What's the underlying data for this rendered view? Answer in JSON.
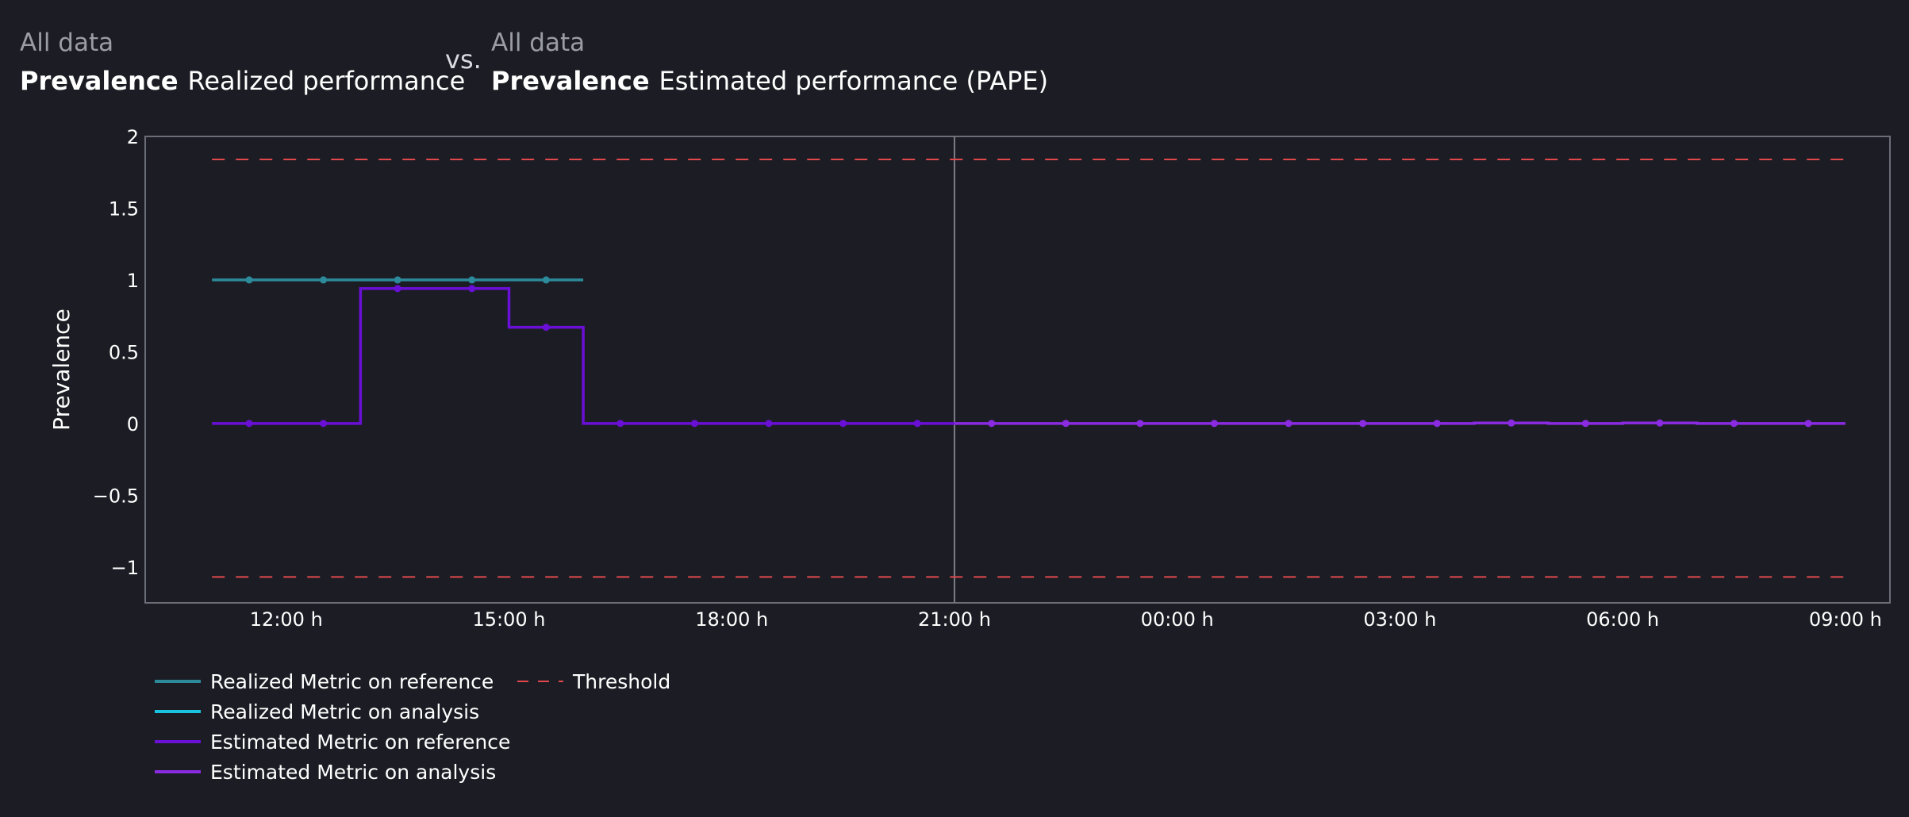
{
  "header": {
    "left": {
      "segment": "All data",
      "metric": "Prevalence",
      "kind": "Realized performance"
    },
    "vs": "vs.",
    "right": {
      "segment": "All data",
      "metric": "Prevalence",
      "kind": "Estimated performance (PAPE)"
    }
  },
  "chart_data": {
    "type": "line",
    "step": true,
    "title": "",
    "xlabel": "",
    "ylabel": "Prevalence",
    "ylim": [
      -1.25,
      2
    ],
    "yticks": [
      2,
      1.5,
      1,
      0.5,
      0,
      -0.5,
      -1
    ],
    "ytick_labels": [
      "2",
      "1.5",
      "1",
      "0.5",
      "0",
      "−0.5",
      "−1"
    ],
    "xlim_hours": [
      10.1,
      33.6
    ],
    "xticks_hours": [
      12,
      15,
      18,
      21,
      24,
      27,
      30,
      33
    ],
    "xtick_labels": [
      "12:00 h",
      "15:00 h",
      "18:00 h",
      "21:00 h",
      "00:00 h",
      "03:00 h",
      "06:00 h",
      "09:00 h"
    ],
    "reference_analysis_split_hour": 21,
    "chunk_edges_hours": [
      11,
      12,
      13,
      14,
      15,
      16,
      17,
      18,
      19,
      20,
      21,
      22,
      23,
      24,
      25,
      26,
      27,
      28,
      29,
      30,
      31,
      32,
      33
    ],
    "series": [
      {
        "name": "Realized Metric on reference",
        "color": "#2c8a9a",
        "style": "solid",
        "values": [
          1,
          1,
          1,
          1,
          1
        ]
      },
      {
        "name": "Realized Metric on analysis",
        "color": "#19c3e0",
        "style": "solid",
        "values": []
      },
      {
        "name": "Estimated Metric on reference",
        "color": "#6a0fd6",
        "style": "solid",
        "values": [
          0,
          0,
          0.94,
          0.94,
          0.67,
          0,
          0,
          0,
          0,
          0
        ]
      },
      {
        "name": "Estimated Metric on analysis",
        "color": "#8a2be2",
        "style": "solid",
        "values": [
          0,
          0,
          0,
          0,
          0,
          0,
          0,
          0.003,
          0,
          0.003,
          0,
          0
        ]
      },
      {
        "name": "Threshold",
        "color": "#e0484c",
        "style": "dashed",
        "values": [
          1.84,
          -1.07
        ]
      }
    ],
    "legend_position": "bottom-left"
  }
}
